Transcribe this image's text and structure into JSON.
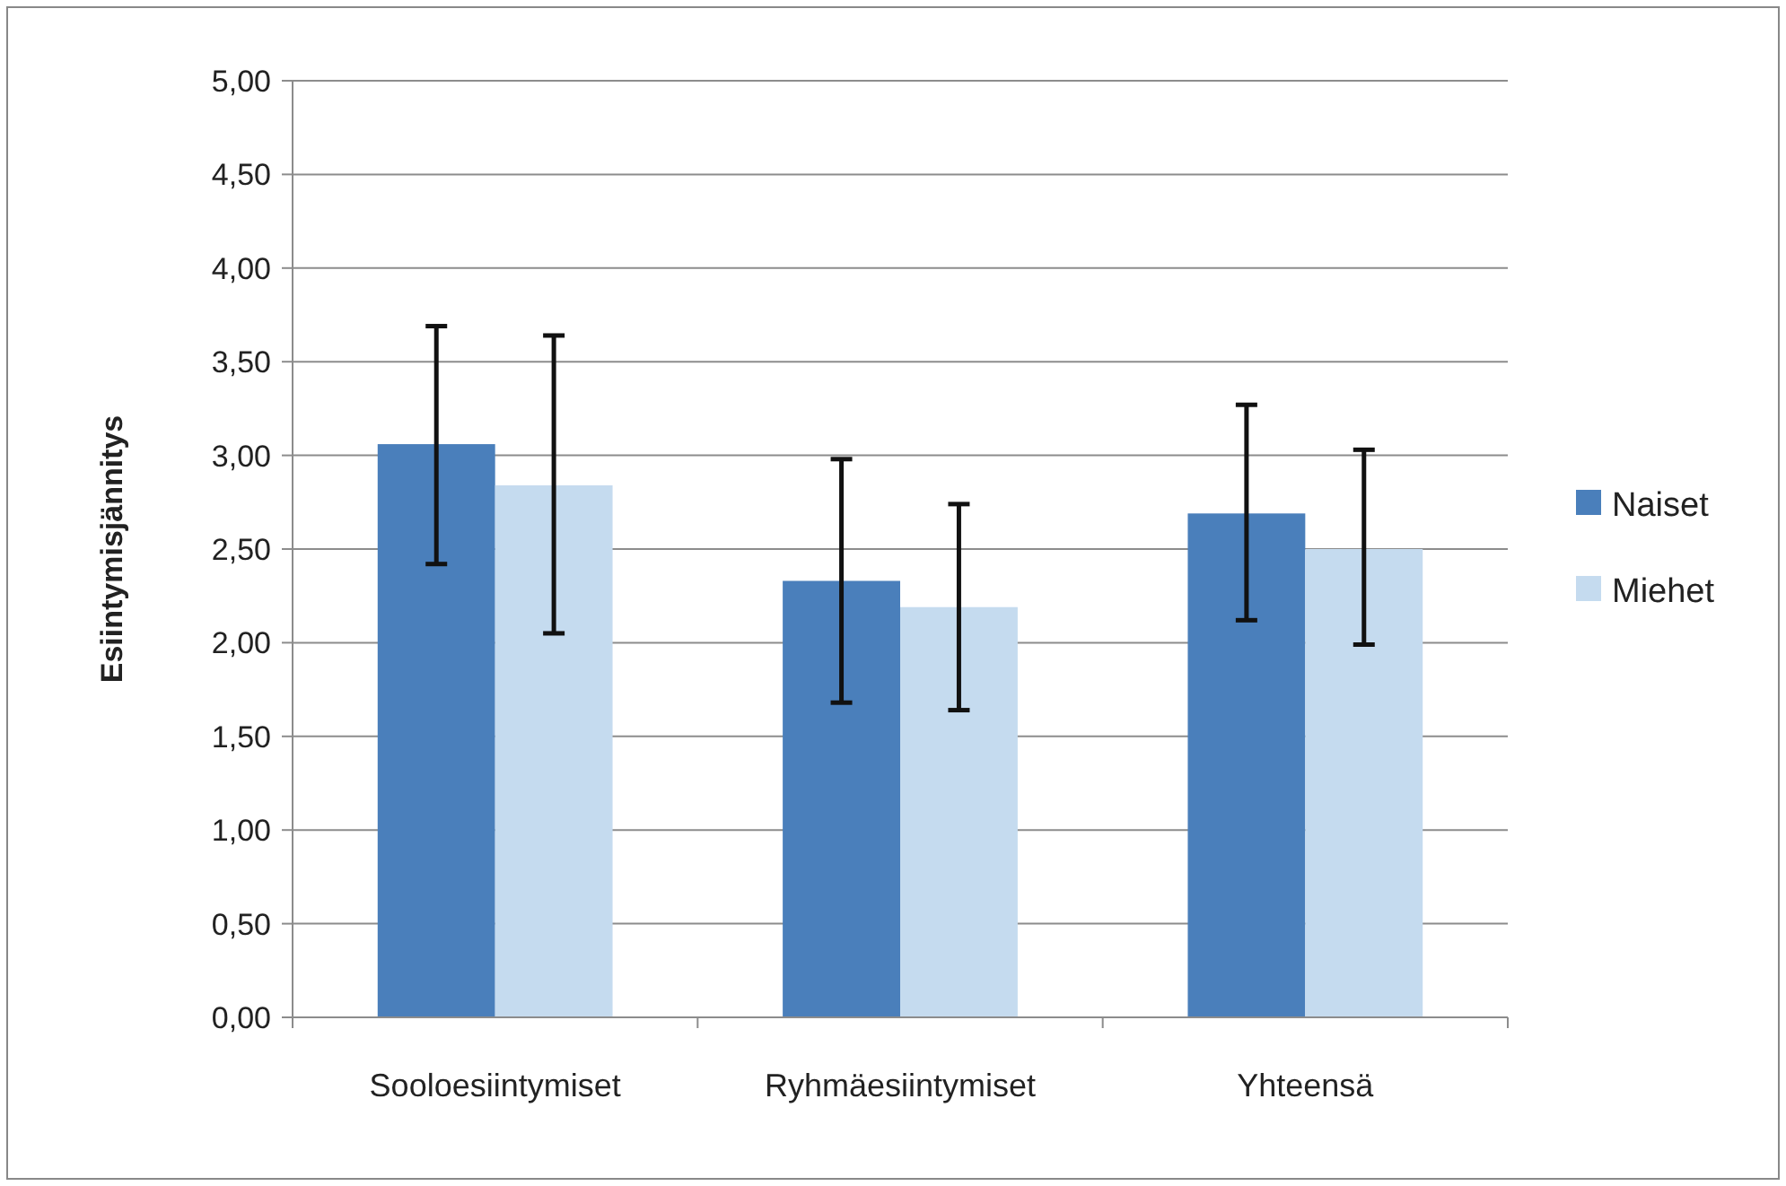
{
  "chart_data": {
    "type": "bar",
    "ylabel": "Esiintymisjännitys",
    "categories": [
      "Sooloesiintymiset",
      "Ryhmäesiintymiset",
      "Yhteensä"
    ],
    "series": [
      {
        "name": "Naiset",
        "color": "#4a7fbb",
        "values": [
          3.06,
          2.33,
          2.69
        ],
        "errors": [
          [
            2.42,
            3.69
          ],
          [
            1.68,
            2.98
          ],
          [
            2.12,
            3.27
          ]
        ]
      },
      {
        "name": "Miehet",
        "color": "#c5dbef",
        "values": [
          2.84,
          2.19,
          2.5
        ],
        "errors": [
          [
            2.05,
            3.64
          ],
          [
            1.64,
            2.74
          ],
          [
            1.99,
            3.03
          ]
        ]
      }
    ],
    "ylim": [
      0,
      5
    ],
    "yticks": [
      {
        "value": 0,
        "label": "0,00"
      },
      {
        "value": 0.5,
        "label": "0,50"
      },
      {
        "value": 1,
        "label": "1,00"
      },
      {
        "value": 1.5,
        "label": "1,50"
      },
      {
        "value": 2,
        "label": "2,00"
      },
      {
        "value": 2.5,
        "label": "2,50"
      },
      {
        "value": 3,
        "label": "3,00"
      },
      {
        "value": 3.5,
        "label": "3,50"
      },
      {
        "value": 4,
        "label": "4,00"
      },
      {
        "value": 4.5,
        "label": "4,50"
      },
      {
        "value": 5,
        "label": "5,00"
      }
    ],
    "grid": "y",
    "legend": "right"
  }
}
